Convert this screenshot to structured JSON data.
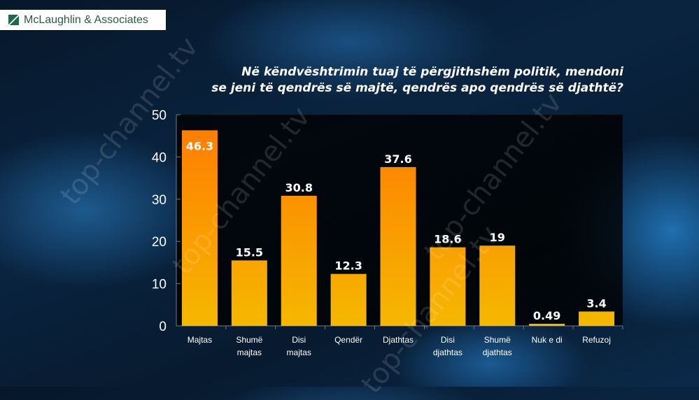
{
  "logo": {
    "text": "McLaughlin & Associates",
    "colors": {
      "mark": "#1e6b4c"
    }
  },
  "watermark": "top-channel.tv",
  "chart_data": {
    "type": "bar",
    "title": "Në këndvështrimin tuaj të përgjithshëm politik, mendoni se jeni të qendrës së majtë, qendrës apo qendrës së djathtë?",
    "title_lines": [
      "Në këndvështrimin tuaj të përgjithshëm politik, mendoni",
      "se jeni të qendrës së majtë, qendrës apo qendrës së djathtë?"
    ],
    "categories": [
      [
        "Majtas"
      ],
      [
        "Shumë",
        "majtas"
      ],
      [
        "Disi",
        "majtas"
      ],
      [
        "Qendër"
      ],
      [
        "Djathtas"
      ],
      [
        "Disi",
        "djathtas"
      ],
      [
        "Shumë",
        "djathtas"
      ],
      [
        "Nuk e di"
      ],
      [
        "Refuzoj"
      ]
    ],
    "values": [
      46.3,
      15.5,
      30.8,
      12.3,
      37.6,
      18.6,
      19,
      0.49,
      3.4
    ],
    "data_labels": [
      "46.3",
      "15.5",
      "30.8",
      "12.3",
      "37.6",
      "18.6",
      "19",
      "0.49",
      "3.4"
    ],
    "ylim": [
      0,
      50
    ],
    "yticks": [
      0,
      10,
      20,
      30,
      40,
      50
    ],
    "grid": false,
    "xlabel": "",
    "ylabel": "",
    "colors": {
      "bar_top": "#ff7a00",
      "bar_bottom": "#f5b800",
      "plot_bg": "#000000",
      "text": "#ffffff"
    }
  }
}
